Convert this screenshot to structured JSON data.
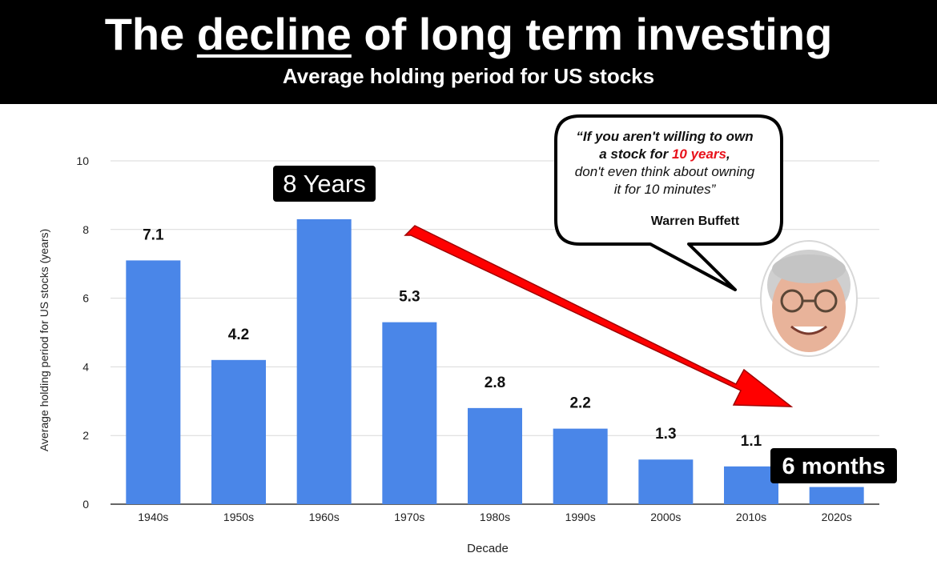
{
  "header": {
    "title_before": "The ",
    "title_underlined": "decline",
    "title_after": " of long term investing",
    "subtitle": "Average holding period for US stocks"
  },
  "quote": {
    "line1": "“If you aren't willing to own",
    "line2_before": "a stock for ",
    "line2_highlight": "10 years",
    "line2_after": ",",
    "line3": "don't even think about owning",
    "line4": "it for 10 minutes”",
    "author": "Warren Buffett",
    "highlight_color": "#e8121b"
  },
  "callouts": {
    "peak": "8 Years",
    "latest": "6 months"
  },
  "chart_data": {
    "type": "bar",
    "title": "The decline of long term investing",
    "subtitle": "Average holding period for US stocks",
    "categories": [
      "1940s",
      "1950s",
      "1960s",
      "1970s",
      "1980s",
      "1990s",
      "2000s",
      "2010s",
      "2020s"
    ],
    "values": [
      7.1,
      4.2,
      8.3,
      5.3,
      2.8,
      2.2,
      1.3,
      1.1,
      0.5
    ],
    "data_labels": [
      "7.1",
      "4.2",
      "",
      "5.3",
      "2.8",
      "2.2",
      "1.3",
      "1.1",
      ""
    ],
    "xlabel": "Decade",
    "ylabel": "Average holding period for US stocks (years)",
    "ylim": [
      0,
      10
    ],
    "yticks": [
      0,
      2,
      4,
      6,
      8,
      10
    ],
    "grid": true,
    "bar_color": "#4a86e8",
    "trend_arrow_color": "#ff0000"
  }
}
